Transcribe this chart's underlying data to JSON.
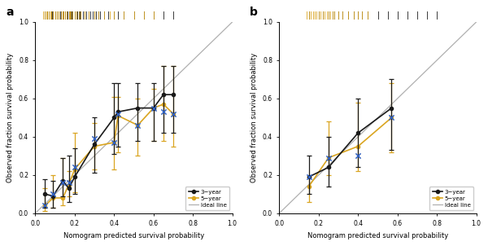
{
  "panel_a": {
    "black_x": [
      0.05,
      0.09,
      0.14,
      0.17,
      0.2,
      0.3,
      0.4,
      0.42,
      0.52,
      0.6,
      0.65,
      0.7
    ],
    "black_y": [
      0.1,
      0.09,
      0.17,
      0.13,
      0.19,
      0.36,
      0.5,
      0.53,
      0.55,
      0.55,
      0.62,
      0.62
    ],
    "black_err_lo": [
      0.07,
      0.06,
      0.08,
      0.07,
      0.09,
      0.15,
      0.19,
      0.18,
      0.17,
      0.17,
      0.2,
      0.2
    ],
    "black_err_hi": [
      0.08,
      0.08,
      0.12,
      0.17,
      0.15,
      0.14,
      0.18,
      0.15,
      0.13,
      0.13,
      0.15,
      0.15
    ],
    "yellow_x": [
      0.05,
      0.09,
      0.14,
      0.17,
      0.2,
      0.3,
      0.4,
      0.42,
      0.52,
      0.6,
      0.65,
      0.7
    ],
    "yellow_y": [
      0.04,
      0.08,
      0.08,
      0.15,
      0.23,
      0.35,
      0.37,
      0.51,
      0.46,
      0.55,
      0.57,
      0.52
    ],
    "yellow_err_lo": [
      0.03,
      0.05,
      0.04,
      0.06,
      0.12,
      0.12,
      0.14,
      0.19,
      0.16,
      0.17,
      0.19,
      0.17
    ],
    "yellow_err_hi": [
      0.09,
      0.12,
      0.21,
      0.07,
      0.19,
      0.12,
      0.24,
      0.1,
      0.14,
      0.1,
      0.2,
      0.25
    ],
    "blue_x": [
      0.05,
      0.09,
      0.14,
      0.17,
      0.2,
      0.3,
      0.4,
      0.42,
      0.52,
      0.6,
      0.65,
      0.7
    ],
    "blue_y": [
      0.04,
      0.1,
      0.16,
      0.16,
      0.24,
      0.39,
      0.37,
      0.52,
      0.46,
      0.55,
      0.53,
      0.52
    ],
    "rug_black": [
      0.05,
      0.06,
      0.07,
      0.08,
      0.085,
      0.09,
      0.1,
      0.11,
      0.12,
      0.125,
      0.13,
      0.14,
      0.145,
      0.15,
      0.16,
      0.165,
      0.17,
      0.175,
      0.18,
      0.185,
      0.19,
      0.2,
      0.21,
      0.215,
      0.22,
      0.225,
      0.23,
      0.24,
      0.25,
      0.26,
      0.27,
      0.28,
      0.29,
      0.3,
      0.31,
      0.32,
      0.33,
      0.35,
      0.37,
      0.4,
      0.42,
      0.45,
      0.5,
      0.55,
      0.6,
      0.65,
      0.7
    ],
    "rug_yellow": [
      0.04,
      0.05,
      0.055,
      0.06,
      0.07,
      0.075,
      0.08,
      0.09,
      0.1,
      0.11,
      0.12,
      0.13,
      0.14,
      0.145,
      0.15,
      0.16,
      0.17,
      0.175,
      0.18,
      0.19,
      0.2,
      0.21,
      0.22,
      0.23,
      0.25,
      0.27,
      0.3,
      0.32,
      0.35,
      0.38,
      0.4,
      0.45,
      0.5,
      0.55,
      0.6
    ]
  },
  "panel_b": {
    "black_x": [
      0.15,
      0.25,
      0.4,
      0.57
    ],
    "black_y": [
      0.19,
      0.24,
      0.42,
      0.55
    ],
    "black_err_lo": [
      0.09,
      0.1,
      0.18,
      0.22
    ],
    "black_err_hi": [
      0.11,
      0.16,
      0.18,
      0.15
    ],
    "yellow_x": [
      0.15,
      0.25,
      0.4,
      0.57
    ],
    "yellow_y": [
      0.14,
      0.29,
      0.35,
      0.5
    ],
    "yellow_err_lo": [
      0.08,
      0.09,
      0.13,
      0.18
    ],
    "yellow_err_hi": [
      0.05,
      0.19,
      0.23,
      0.18
    ],
    "blue_x": [
      0.15,
      0.25,
      0.4,
      0.57
    ],
    "blue_y": [
      0.19,
      0.29,
      0.3,
      0.5
    ],
    "rug_black": [
      0.15,
      0.2,
      0.22,
      0.25,
      0.27,
      0.28,
      0.3,
      0.32,
      0.35,
      0.38,
      0.4,
      0.42,
      0.45,
      0.5,
      0.55,
      0.6,
      0.65,
      0.7,
      0.75,
      0.8
    ],
    "rug_yellow": [
      0.14,
      0.15,
      0.16,
      0.17,
      0.18,
      0.19,
      0.2,
      0.21,
      0.22,
      0.23,
      0.24,
      0.25,
      0.26,
      0.27,
      0.28,
      0.3,
      0.32,
      0.35,
      0.38,
      0.4,
      0.42,
      0.45
    ]
  },
  "colors": {
    "black": "#1a1a1a",
    "yellow": "#DAA520",
    "blue": "#3060C0",
    "ideal": "#b0b0b0"
  },
  "xlabel": "Nomogram predicted survival probability",
  "ylabel": "Observed fraction survival probability",
  "xlim": [
    0.0,
    1.0
  ],
  "ylim": [
    0.0,
    1.0
  ],
  "xticks": [
    0.0,
    0.2,
    0.4,
    0.6,
    0.8,
    1.0
  ],
  "yticks": [
    0.0,
    0.2,
    0.4,
    0.6,
    0.8,
    1.0
  ]
}
